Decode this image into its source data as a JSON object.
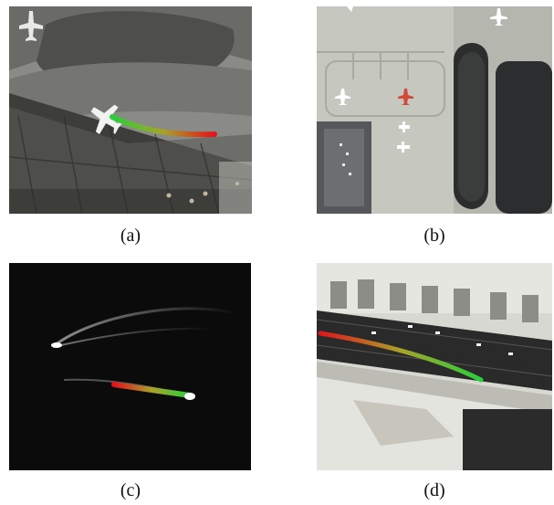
{
  "figure": {
    "panels": [
      {
        "id": "a",
        "caption": "(a)",
        "scene": "aerial-airport-apron-aircraft-turning-grayscale"
      },
      {
        "id": "b",
        "caption": "(b)",
        "scene": "aerial-airport-runway-vertical-track"
      },
      {
        "id": "c",
        "caption": "(c)",
        "scene": "night-infrared-moving-light-streaks"
      },
      {
        "id": "d",
        "caption": "(d)",
        "scene": "aerial-road-vehicle-track"
      }
    ],
    "track_colors": {
      "start": "#e0151b",
      "mid": "#a9a22a",
      "end": "#27d03a"
    }
  }
}
